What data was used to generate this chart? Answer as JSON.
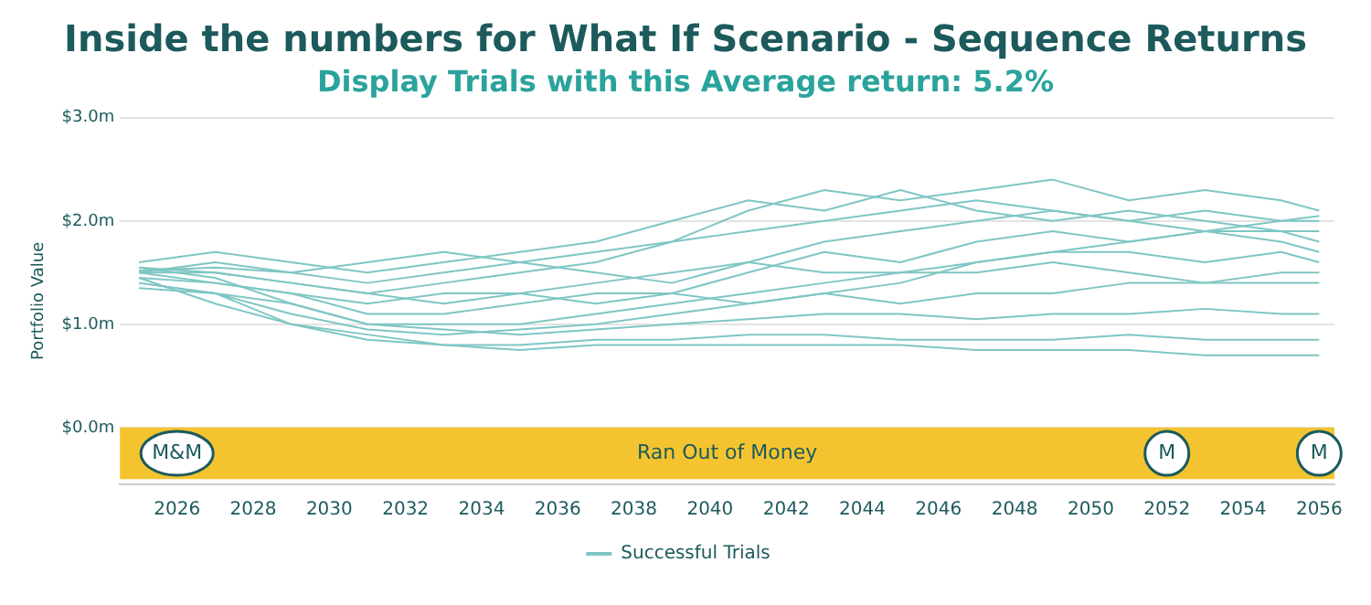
{
  "chart_data": {
    "type": "line",
    "title": "Inside the numbers for What If Scenario - Sequence Returns",
    "subtitle": "Display Trials with this Average return: 5.2%",
    "ylabel": "Portfolio Value",
    "x": [
      2025,
      2027,
      2029,
      2031,
      2033,
      2035,
      2037,
      2039,
      2041,
      2043,
      2045,
      2047,
      2049,
      2051,
      2053,
      2055,
      2056
    ],
    "xlim": [
      2024.5,
      2056.4
    ],
    "xticks": [
      2026,
      2028,
      2030,
      2032,
      2034,
      2036,
      2038,
      2040,
      2042,
      2044,
      2046,
      2048,
      2050,
      2052,
      2054,
      2056
    ],
    "ylim": [
      -0.55,
      3
    ],
    "yticks": [
      {
        "value": 0,
        "label": "$0.0m"
      },
      {
        "value": 1,
        "label": "$1.0m"
      },
      {
        "value": 2,
        "label": "$2.0m"
      },
      {
        "value": 3,
        "label": "$3.0m"
      }
    ],
    "grid": "y",
    "legend": "bottom",
    "marker": "none",
    "series": [
      {
        "name": "Successful Trials",
        "color": "#7fc6c4",
        "values": [
          1.5,
          1.6,
          1.5,
          1.4,
          1.5,
          1.6,
          1.7,
          1.8,
          2.1,
          2.3,
          2.2,
          2.3,
          2.4,
          2.2,
          2.3,
          2.2,
          2.1
        ]
      },
      {
        "color": "#7fc6c4",
        "values": [
          1.4,
          1.3,
          1.0,
          0.85,
          0.8,
          0.8,
          0.85,
          0.85,
          0.9,
          0.9,
          0.85,
          0.85,
          0.85,
          0.9,
          0.85,
          0.85,
          0.85
        ]
      },
      {
        "color": "#7fc6c4",
        "values": [
          1.45,
          1.2,
          1.0,
          0.9,
          0.8,
          0.75,
          0.8,
          0.8,
          0.8,
          0.8,
          0.8,
          0.75,
          0.75,
          0.75,
          0.7,
          0.7,
          0.7
        ]
      },
      {
        "color": "#7fc6c4",
        "values": [
          1.5,
          1.5,
          1.4,
          1.3,
          1.4,
          1.5,
          1.6,
          1.8,
          1.9,
          2.0,
          2.1,
          2.2,
          2.1,
          2.0,
          2.1,
          2.0,
          2.0
        ]
      },
      {
        "color": "#7fc6c4",
        "values": [
          1.55,
          1.45,
          1.2,
          1.0,
          1.0,
          1.0,
          1.1,
          1.2,
          1.3,
          1.4,
          1.5,
          1.6,
          1.7,
          1.8,
          1.9,
          1.9,
          1.8
        ]
      },
      {
        "color": "#7fc6c4",
        "values": [
          1.4,
          1.3,
          1.1,
          0.95,
          0.9,
          0.95,
          1.0,
          1.1,
          1.2,
          1.3,
          1.2,
          1.3,
          1.3,
          1.4,
          1.4,
          1.5,
          1.5
        ]
      },
      {
        "color": "#7fc6c4",
        "values": [
          1.6,
          1.7,
          1.6,
          1.5,
          1.6,
          1.7,
          1.8,
          2.0,
          2.2,
          2.1,
          2.3,
          2.1,
          2.0,
          2.1,
          2.0,
          1.9,
          1.9
        ]
      },
      {
        "color": "#7fc6c4",
        "values": [
          1.5,
          1.4,
          1.3,
          1.2,
          1.3,
          1.3,
          1.4,
          1.5,
          1.6,
          1.5,
          1.5,
          1.5,
          1.6,
          1.5,
          1.4,
          1.4,
          1.4
        ]
      },
      {
        "color": "#7fc6c4",
        "values": [
          1.35,
          1.3,
          1.2,
          1.0,
          0.95,
          0.9,
          0.95,
          1.0,
          1.05,
          1.1,
          1.1,
          1.05,
          1.1,
          1.1,
          1.15,
          1.1,
          1.1
        ]
      },
      {
        "color": "#7fc6c4",
        "values": [
          1.52,
          1.55,
          1.5,
          1.6,
          1.7,
          1.6,
          1.5,
          1.4,
          1.6,
          1.8,
          1.9,
          2.0,
          2.1,
          2.0,
          1.9,
          2.0,
          2.05
        ]
      },
      {
        "color": "#7fc6c4",
        "values": [
          1.45,
          1.4,
          1.3,
          1.1,
          1.1,
          1.2,
          1.3,
          1.3,
          1.2,
          1.3,
          1.4,
          1.6,
          1.7,
          1.7,
          1.6,
          1.7,
          1.6
        ]
      },
      {
        "color": "#7fc6c4",
        "values": [
          1.55,
          1.5,
          1.4,
          1.3,
          1.2,
          1.3,
          1.2,
          1.3,
          1.5,
          1.7,
          1.6,
          1.8,
          1.9,
          1.8,
          1.9,
          1.8,
          1.7
        ]
      }
    ],
    "bands": [
      {
        "axis": "y",
        "from": -0.5,
        "to": 0,
        "label": "Ran Out of Money",
        "color": "#f4c430"
      }
    ],
    "annotations": [
      {
        "text": "M&M",
        "x": 2026,
        "y": -0.25
      },
      {
        "text": "M",
        "x": 2052,
        "y": -0.25
      },
      {
        "text": "M",
        "x": 2056,
        "y": -0.25
      }
    ]
  }
}
